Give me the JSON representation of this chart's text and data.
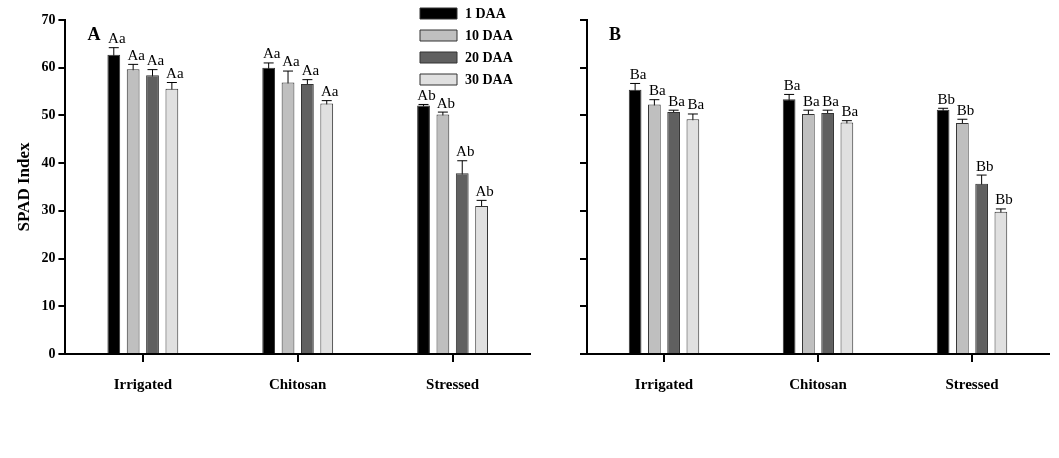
{
  "chart_data": [
    {
      "type": "bar",
      "annotations": [
        "A"
      ],
      "ylabel": "SPAD Index",
      "categories": [
        "Irrigated",
        "Chitosan",
        "Stressed"
      ],
      "ylim": [
        0,
        70
      ],
      "yticks": [
        0,
        10,
        20,
        30,
        40,
        50,
        60,
        70
      ],
      "grid": false,
      "legend": "top right",
      "series": [
        {
          "name": "1 DAA",
          "color": "#000000",
          "values": [
            62.7,
            60.0,
            52.1
          ],
          "errors": [
            1.5,
            1.0,
            0.2
          ],
          "value_labels": [
            "Aa",
            "Aa",
            "Ab"
          ]
        },
        {
          "name": "10 DAA",
          "color": "#bfbfbf",
          "values": [
            59.7,
            56.9,
            50.2
          ],
          "errors": [
            1.0,
            2.4,
            0.5
          ],
          "value_labels": [
            "Aa",
            "Aa",
            "Ab"
          ]
        },
        {
          "name": "20 DAA",
          "color": "#606060",
          "values": [
            58.4,
            56.6,
            37.9
          ],
          "errors": [
            1.2,
            0.9,
            2.6
          ],
          "value_labels": [
            "Aa",
            "Aa",
            "Ab"
          ]
        },
        {
          "name": "30 DAA",
          "color": "#e0e0e0",
          "values": [
            55.6,
            52.5,
            31.0
          ],
          "errors": [
            1.3,
            0.6,
            1.2
          ],
          "value_labels": [
            "Aa",
            "Aa",
            "Ab"
          ]
        }
      ]
    },
    {
      "type": "bar",
      "annotations": [
        "B"
      ],
      "categories": [
        "Irrigated",
        "Chitosan",
        "Stressed"
      ],
      "ylim": [
        0,
        70
      ],
      "yticks": [
        0,
        10,
        20,
        30,
        40,
        50,
        60,
        70
      ],
      "grid": false,
      "tick_labels": "x",
      "series": [
        {
          "color": "#000000",
          "values": [
            55.4,
            53.4,
            51.2
          ],
          "errors": [
            1.3,
            1.0,
            0.3
          ],
          "value_labels": [
            "Ba",
            "Ba",
            "Bb"
          ]
        },
        {
          "color": "#bfbfbf",
          "values": [
            52.3,
            50.3,
            48.4
          ],
          "errors": [
            1.0,
            0.8,
            0.8
          ],
          "value_labels": [
            "Ba",
            "Ba",
            "Bb"
          ]
        },
        {
          "color": "#606060",
          "values": [
            50.7,
            50.5,
            35.7
          ],
          "errors": [
            0.4,
            0.6,
            1.8
          ],
          "value_labels": [
            "Ba",
            "Ba",
            "Bb"
          ]
        },
        {
          "color": "#e0e0e0",
          "values": [
            49.2,
            48.5,
            29.8
          ],
          "errors": [
            1.1,
            0.4,
            0.6
          ],
          "value_labels": [
            "Ba",
            "Ba",
            "Bb"
          ]
        }
      ]
    }
  ]
}
